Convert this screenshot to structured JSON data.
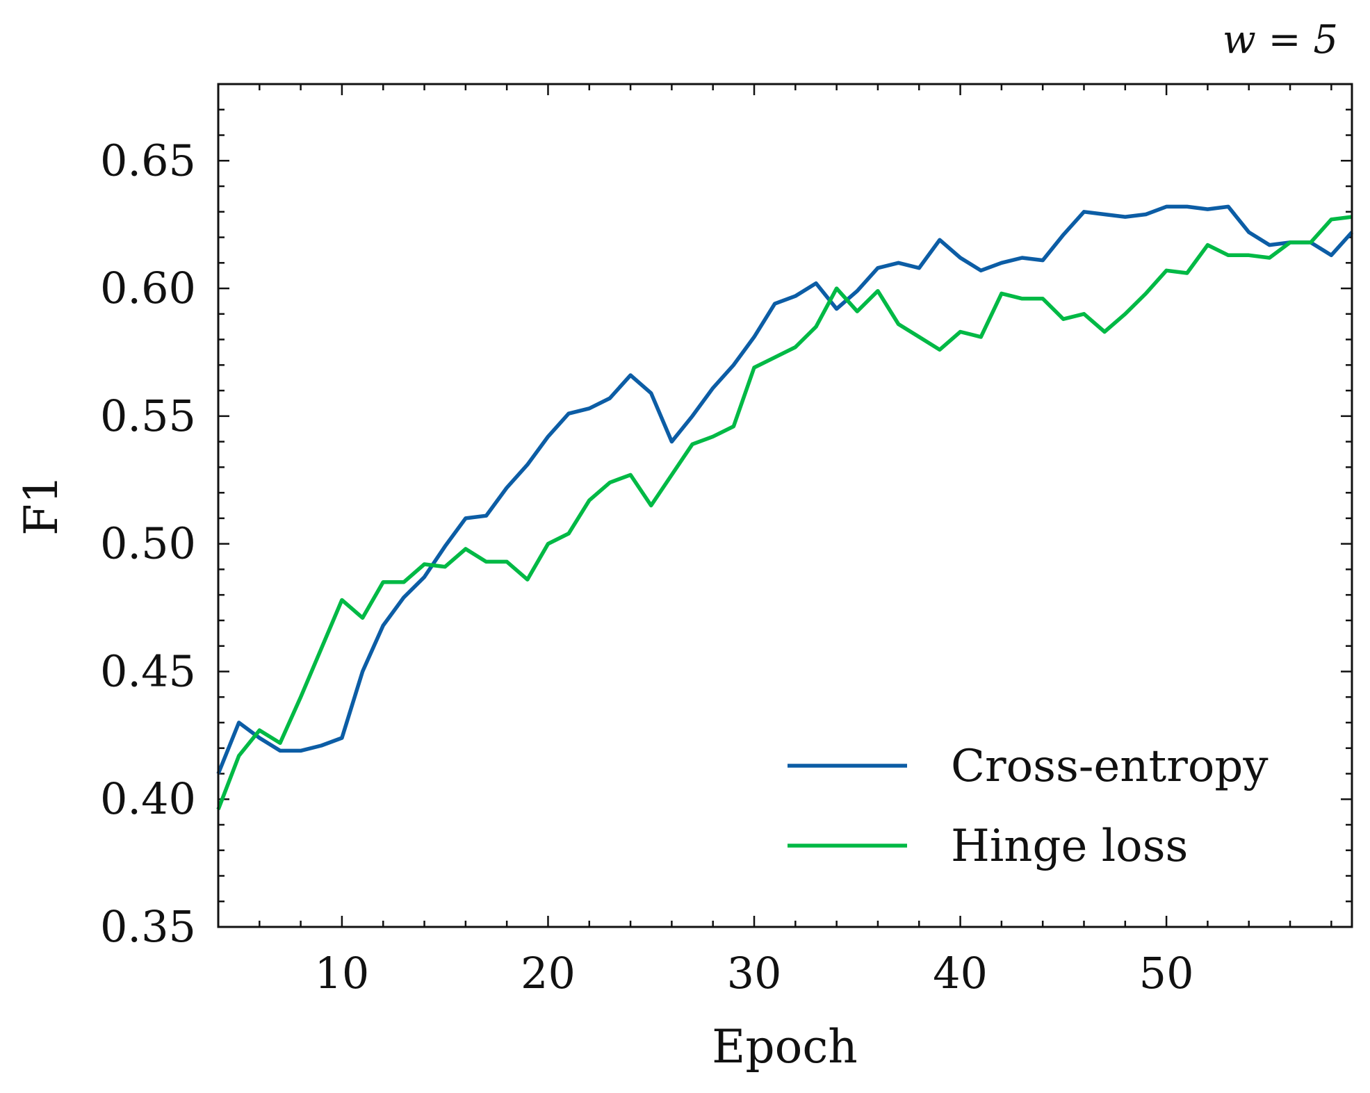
{
  "chart_data": {
    "type": "line",
    "title": "",
    "annotation": "w = 5",
    "xlabel": "Epoch",
    "ylabel": "F1",
    "xlim": [
      4,
      59
    ],
    "ylim": [
      0.35,
      0.68
    ],
    "xticks": [
      10,
      20,
      30,
      40,
      50
    ],
    "xtick_labels": [
      "10",
      "20",
      "30",
      "40",
      "50"
    ],
    "yticks": [
      0.35,
      0.4,
      0.45,
      0.5,
      0.55,
      0.6,
      0.65
    ],
    "ytick_labels": [
      "0.35",
      "0.40",
      "0.45",
      "0.50",
      "0.55",
      "0.60",
      "0.65"
    ],
    "grid": false,
    "legend_position": "lower-right",
    "x": [
      4,
      5,
      6,
      7,
      8,
      9,
      10,
      11,
      12,
      13,
      14,
      15,
      16,
      17,
      18,
      19,
      20,
      21,
      22,
      23,
      24,
      25,
      26,
      27,
      28,
      29,
      30,
      31,
      32,
      33,
      34,
      35,
      36,
      37,
      38,
      39,
      40,
      41,
      42,
      43,
      44,
      45,
      46,
      47,
      48,
      49,
      50,
      51,
      52,
      53,
      54,
      55,
      56,
      57,
      58,
      59
    ],
    "series": [
      {
        "name": "Cross-entropy",
        "color": "#0C5DA5",
        "values": [
          0.41,
          0.43,
          0.424,
          0.419,
          0.419,
          0.421,
          0.424,
          0.45,
          0.468,
          0.479,
          0.487,
          0.499,
          0.51,
          0.511,
          0.522,
          0.531,
          0.542,
          0.551,
          0.553,
          0.557,
          0.566,
          0.559,
          0.54,
          0.55,
          0.561,
          0.57,
          0.581,
          0.594,
          0.597,
          0.602,
          0.592,
          0.599,
          0.608,
          0.61,
          0.608,
          0.619,
          0.612,
          0.607,
          0.61,
          0.612,
          0.611,
          0.621,
          0.63,
          0.629,
          0.628,
          0.629,
          0.632,
          0.632,
          0.631,
          0.632,
          0.622,
          0.617,
          0.618,
          0.618,
          0.613,
          0.622
        ]
      },
      {
        "name": "Hinge loss",
        "color": "#00B945",
        "values": [
          0.396,
          0.417,
          0.427,
          0.422,
          0.44,
          0.459,
          0.478,
          0.471,
          0.485,
          0.485,
          0.492,
          0.491,
          0.498,
          0.493,
          0.493,
          0.486,
          0.5,
          0.504,
          0.517,
          0.524,
          0.527,
          0.515,
          0.527,
          0.539,
          0.542,
          0.546,
          0.569,
          0.573,
          0.577,
          0.585,
          0.6,
          0.591,
          0.599,
          0.586,
          0.581,
          0.576,
          0.583,
          0.581,
          0.598,
          0.596,
          0.596,
          0.588,
          0.59,
          0.583,
          0.59,
          0.598,
          0.607,
          0.606,
          0.617,
          0.613,
          0.613,
          0.612,
          0.618,
          0.618,
          0.627,
          0.628
        ]
      }
    ]
  }
}
